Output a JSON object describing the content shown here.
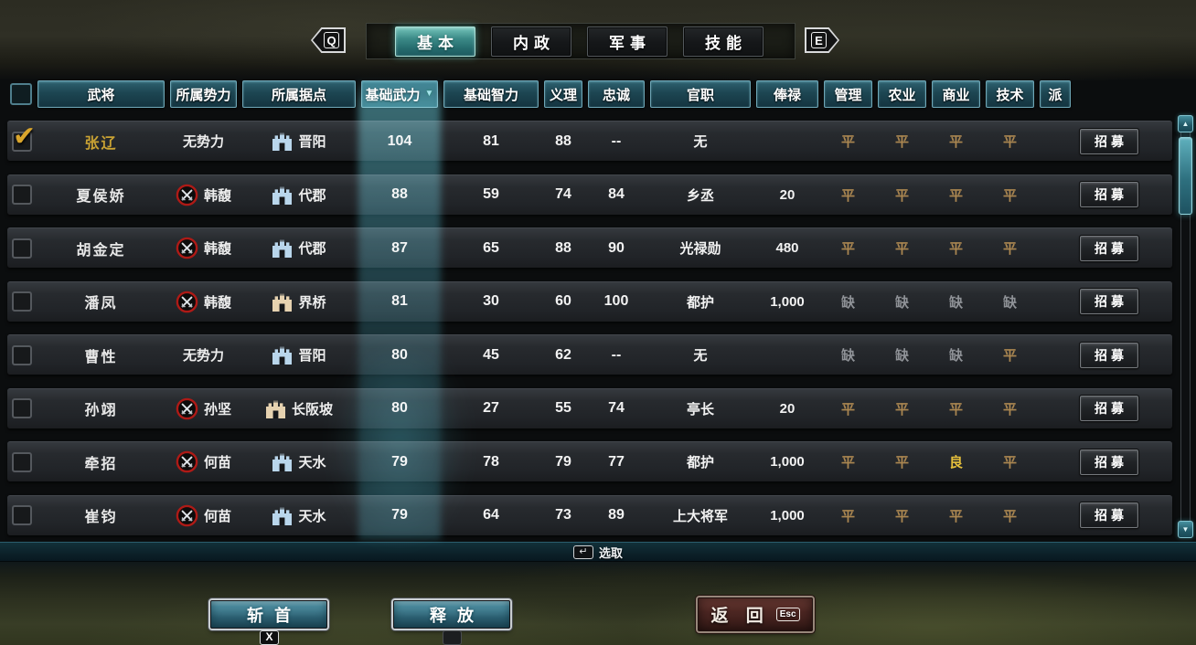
{
  "tabs": {
    "prev_key": "Q",
    "next_key": "E",
    "items": [
      {
        "label": "基本",
        "active": true
      },
      {
        "label": "内政",
        "active": false
      },
      {
        "label": "军事",
        "active": false
      },
      {
        "label": "技能",
        "active": false
      }
    ]
  },
  "table": {
    "columns": [
      {
        "label": "武将",
        "sorted": false
      },
      {
        "label": "所属势力",
        "sorted": false
      },
      {
        "label": "所属据点",
        "sorted": false
      },
      {
        "label": "基础武力",
        "sorted": true
      },
      {
        "label": "基础智力",
        "sorted": false
      },
      {
        "label": "义理",
        "sorted": false
      },
      {
        "label": "忠诚",
        "sorted": false
      },
      {
        "label": "官职",
        "sorted": false
      },
      {
        "label": "俸禄",
        "sorted": false
      },
      {
        "label": "管理",
        "sorted": false
      },
      {
        "label": "农业",
        "sorted": false
      },
      {
        "label": "商业",
        "sorted": false
      },
      {
        "label": "技术",
        "sorted": false
      },
      {
        "label": "派",
        "sorted": false
      }
    ],
    "sort_indicator": "▼",
    "recruit_label": "招募",
    "rows": [
      {
        "checked": true,
        "name": "张辽",
        "faction": "无势力",
        "faction_flag": false,
        "base": "晋阳",
        "base_type": "city",
        "war": "104",
        "intel": "81",
        "honor": "88",
        "loyalty": "--",
        "office": "无",
        "salary": "",
        "grades": [
          "平",
          "平",
          "平",
          "平"
        ]
      },
      {
        "checked": false,
        "name": "夏侯娇",
        "faction": "韩馥",
        "faction_flag": true,
        "base": "代郡",
        "base_type": "city",
        "war": "88",
        "intel": "59",
        "honor": "74",
        "loyalty": "84",
        "office": "乡丞",
        "salary": "20",
        "grades": [
          "平",
          "平",
          "平",
          "平"
        ]
      },
      {
        "checked": false,
        "name": "胡金定",
        "faction": "韩馥",
        "faction_flag": true,
        "base": "代郡",
        "base_type": "city",
        "war": "87",
        "intel": "65",
        "honor": "88",
        "loyalty": "90",
        "office": "光禄勋",
        "salary": "480",
        "grades": [
          "平",
          "平",
          "平",
          "平"
        ]
      },
      {
        "checked": false,
        "name": "潘凤",
        "faction": "韩馥",
        "faction_flag": true,
        "base": "界桥",
        "base_type": "fort",
        "war": "81",
        "intel": "30",
        "honor": "60",
        "loyalty": "100",
        "office": "都护",
        "salary": "1,000",
        "grades": [
          "缺",
          "缺",
          "缺",
          "缺"
        ]
      },
      {
        "checked": false,
        "name": "曹性",
        "faction": "无势力",
        "faction_flag": false,
        "base": "晋阳",
        "base_type": "city",
        "war": "80",
        "intel": "45",
        "honor": "62",
        "loyalty": "--",
        "office": "无",
        "salary": "",
        "grades": [
          "缺",
          "缺",
          "缺",
          "平"
        ]
      },
      {
        "checked": false,
        "name": "孙翊",
        "faction": "孙坚",
        "faction_flag": true,
        "base": "长阪坡",
        "base_type": "fort",
        "war": "80",
        "intel": "27",
        "honor": "55",
        "loyalty": "74",
        "office": "亭长",
        "salary": "20",
        "grades": [
          "平",
          "平",
          "平",
          "平"
        ]
      },
      {
        "checked": false,
        "name": "牵招",
        "faction": "何苗",
        "faction_flag": true,
        "base": "天水",
        "base_type": "city",
        "war": "79",
        "intel": "78",
        "honor": "79",
        "loyalty": "77",
        "office": "都护",
        "salary": "1,000",
        "grades": [
          "平",
          "平",
          "良",
          "平"
        ]
      },
      {
        "checked": false,
        "name": "崔钧",
        "faction": "何苗",
        "faction_flag": true,
        "base": "天水",
        "base_type": "city",
        "war": "79",
        "intel": "64",
        "honor": "73",
        "loyalty": "89",
        "office": "上大将军",
        "salary": "1,000",
        "grades": [
          "平",
          "平",
          "平",
          "平"
        ]
      }
    ]
  },
  "hint": {
    "key": "↵",
    "label": "选取"
  },
  "footer": {
    "behead_label": "斩首",
    "behead_key": "X",
    "release_label": "释放",
    "return_label": "返 回",
    "return_key": "Esc"
  },
  "scrollbar": {
    "up": "▲",
    "down": "▼"
  },
  "colors": {
    "accent_teal": "#3b8a87",
    "grade_avg": "#ab8751",
    "grade_missing": "#8f9297",
    "grade_good": "#e5bf3c",
    "selected_gold": "#c9a233",
    "flag_ring_red": "#ae1a16",
    "castle_blue": "#b9d6ec",
    "castle_tan": "#e6d2b0"
  }
}
